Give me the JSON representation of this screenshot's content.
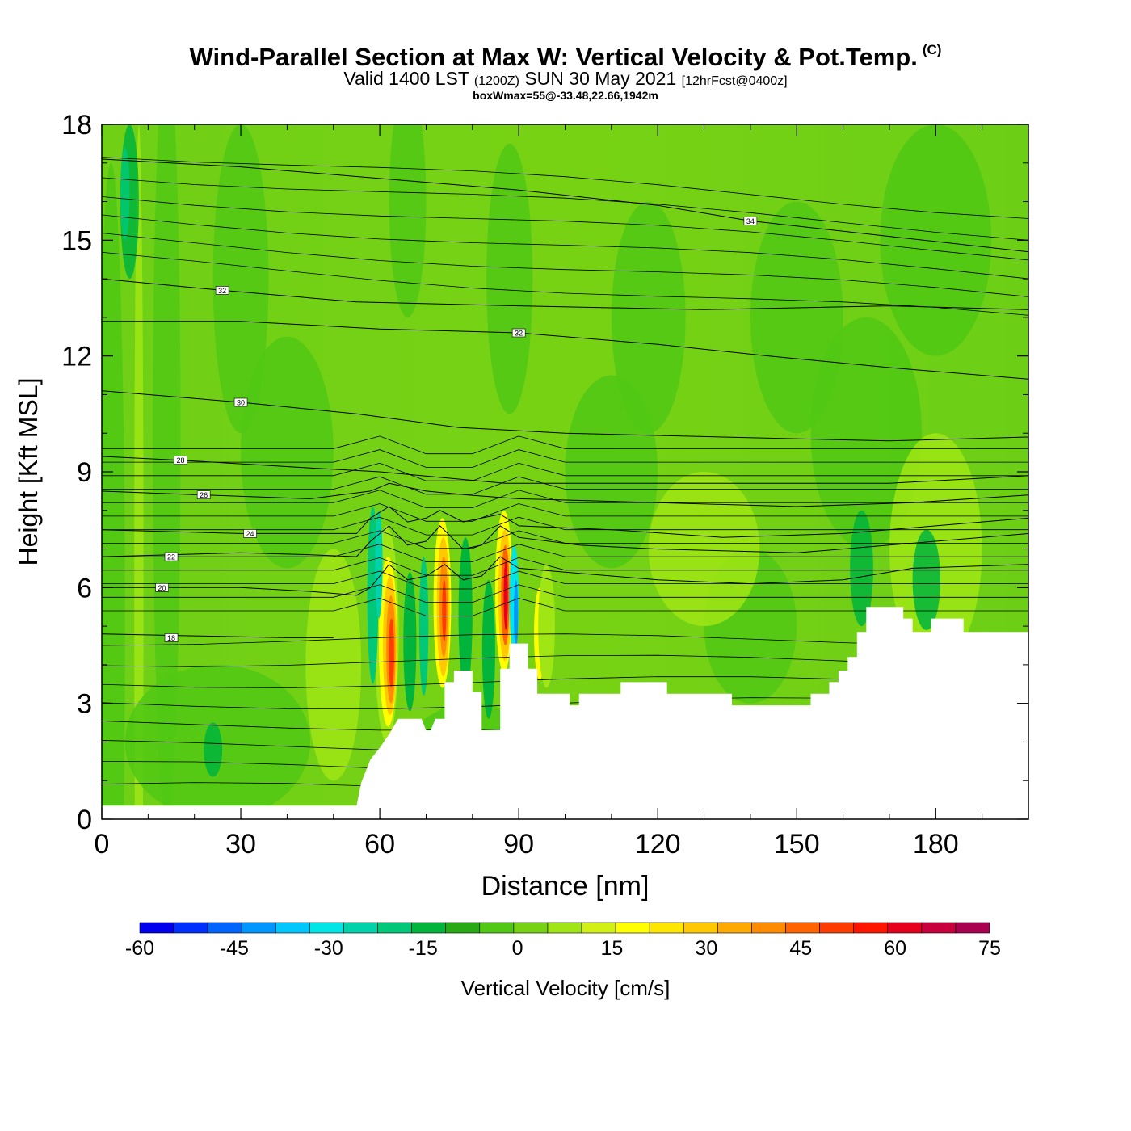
{
  "header": {
    "title": "Wind-Parallel Section at Max W: Vertical Velocity & Pot.Temp.",
    "copyright": "(C)",
    "valid_prefix": "Valid 1400 LST",
    "valid_utc": "(1200Z)",
    "valid_date": "SUN 30 May 2021",
    "forecast": "[12hrFcst@0400z]",
    "box_info": "boxWmax=55@-33.48,22.66,1942m"
  },
  "chart_data": {
    "type": "heatmap",
    "xlabel": "Distance [nm]",
    "ylabel": "Height [Kft MSL]",
    "xlim": [
      0,
      200
    ],
    "ylim": [
      0,
      18
    ],
    "x_ticks": [
      0,
      30,
      60,
      90,
      120,
      150,
      180
    ],
    "y_ticks": [
      0,
      3,
      6,
      9,
      12,
      15,
      18
    ],
    "colorbar": {
      "label": "Vertical Velocity [cm/s]",
      "min": -60,
      "max": 75,
      "step": 5,
      "tick_values": [
        -60,
        -45,
        -30,
        -15,
        0,
        15,
        30,
        45,
        60,
        75
      ],
      "colors": [
        "#0000ee",
        "#0030ff",
        "#0064ff",
        "#0096ff",
        "#00c8ff",
        "#00e6e6",
        "#00d2aa",
        "#00c878",
        "#00b43c",
        "#28aa14",
        "#50c814",
        "#78d214",
        "#a0e614",
        "#d2f014",
        "#ffff00",
        "#ffe600",
        "#ffc800",
        "#ffaa00",
        "#ff8c00",
        "#ff6400",
        "#ff3c00",
        "#ff1400",
        "#e6001e",
        "#c8003c",
        "#aa0050"
      ]
    },
    "terrain_profile": [
      [
        0,
        0.35
      ],
      [
        55,
        0.35
      ],
      [
        56,
        0.95
      ],
      [
        58,
        1.55
      ],
      [
        60,
        1.85
      ],
      [
        62,
        2.2
      ],
      [
        64,
        2.6
      ],
      [
        69,
        2.6
      ],
      [
        70,
        2.3
      ],
      [
        71,
        2.3
      ],
      [
        72,
        2.6
      ],
      [
        74,
        2.6
      ],
      [
        74,
        3.55
      ],
      [
        76,
        3.55
      ],
      [
        76,
        3.85
      ],
      [
        80,
        3.85
      ],
      [
        80,
        3.3
      ],
      [
        82,
        3.3
      ],
      [
        82,
        2.3
      ],
      [
        86,
        2.3
      ],
      [
        86,
        3.9
      ],
      [
        88,
        3.9
      ],
      [
        88,
        4.55
      ],
      [
        92,
        4.55
      ],
      [
        92,
        3.9
      ],
      [
        94,
        3.9
      ],
      [
        94,
        3.25
      ],
      [
        101,
        3.25
      ],
      [
        101,
        2.95
      ],
      [
        103,
        2.95
      ],
      [
        103,
        3.25
      ],
      [
        112,
        3.25
      ],
      [
        112,
        3.55
      ],
      [
        122,
        3.55
      ],
      [
        122,
        3.25
      ],
      [
        136,
        3.25
      ],
      [
        136,
        2.95
      ],
      [
        153,
        2.95
      ],
      [
        153,
        3.25
      ],
      [
        157,
        3.25
      ],
      [
        157,
        3.55
      ],
      [
        159,
        3.55
      ],
      [
        159,
        3.85
      ],
      [
        161,
        3.85
      ],
      [
        161,
        4.2
      ],
      [
        163,
        4.2
      ],
      [
        163,
        4.85
      ],
      [
        165,
        4.85
      ],
      [
        165,
        5.5
      ],
      [
        173,
        5.5
      ],
      [
        173,
        5.2
      ],
      [
        175,
        5.2
      ],
      [
        175,
        4.85
      ],
      [
        179,
        4.85
      ],
      [
        179,
        5.2
      ],
      [
        186,
        5.2
      ],
      [
        186,
        4.85
      ],
      [
        200,
        4.85
      ]
    ],
    "isentropes": [
      {
        "label": "18",
        "label_at": [
          15,
          4.7
        ],
        "points": [
          [
            0,
            4.8
          ],
          [
            20,
            4.75
          ],
          [
            40,
            4.7
          ],
          [
            50,
            4.7
          ]
        ]
      },
      {
        "label": "20",
        "label_at": [
          13,
          6.0
        ],
        "points": [
          [
            0,
            6.0
          ],
          [
            30,
            6.0
          ],
          [
            45,
            5.9
          ],
          [
            55,
            5.8
          ],
          [
            58,
            6.0
          ],
          [
            62,
            6.6
          ],
          [
            66,
            6.2
          ],
          [
            70,
            6.3
          ],
          [
            74,
            6.6
          ],
          [
            78,
            6.2
          ],
          [
            82,
            6.3
          ],
          [
            86,
            6.8
          ],
          [
            90,
            6.5
          ],
          [
            100,
            6.4
          ],
          [
            120,
            6.2
          ],
          [
            140,
            6.1
          ],
          [
            160,
            6.2
          ],
          [
            175,
            6.5
          ],
          [
            200,
            6.6
          ]
        ]
      },
      {
        "label": "22",
        "label_at": [
          15,
          6.8
        ],
        "points": [
          [
            0,
            6.8
          ],
          [
            30,
            6.9
          ],
          [
            45,
            6.85
          ],
          [
            55,
            6.8
          ],
          [
            58,
            7.2
          ],
          [
            62,
            7.6
          ],
          [
            66,
            7.1
          ],
          [
            70,
            7.2
          ],
          [
            73,
            7.6
          ],
          [
            78,
            7.0
          ],
          [
            82,
            7.1
          ],
          [
            86,
            7.6
          ],
          [
            90,
            7.3
          ],
          [
            103,
            7.1
          ],
          [
            120,
            7.0
          ],
          [
            150,
            6.9
          ],
          [
            170,
            7.1
          ],
          [
            200,
            7.4
          ]
        ]
      },
      {
        "label": "24",
        "label_at": [
          32,
          7.4
        ],
        "points": [
          [
            0,
            7.5
          ],
          [
            30,
            7.4
          ],
          [
            45,
            7.4
          ],
          [
            55,
            7.4
          ],
          [
            58,
            7.8
          ],
          [
            62,
            8.1
          ],
          [
            66,
            7.7
          ],
          [
            70,
            7.8
          ],
          [
            73,
            8.0
          ],
          [
            78,
            7.7
          ],
          [
            82,
            7.8
          ],
          [
            86,
            7.9
          ],
          [
            90,
            7.6
          ],
          [
            110,
            7.5
          ],
          [
            134,
            7.3
          ],
          [
            160,
            7.4
          ],
          [
            180,
            7.6
          ],
          [
            200,
            7.8
          ]
        ]
      },
      {
        "label": "26",
        "label_at": [
          22,
          8.4
        ],
        "points": [
          [
            0,
            8.5
          ],
          [
            22,
            8.4
          ],
          [
            45,
            8.3
          ],
          [
            58,
            8.5
          ],
          [
            62,
            8.7
          ],
          [
            70,
            8.5
          ],
          [
            79,
            8.4
          ],
          [
            90,
            8.3
          ],
          [
            120,
            8.2
          ],
          [
            150,
            8.1
          ],
          [
            175,
            8.2
          ],
          [
            200,
            8.4
          ]
        ]
      },
      {
        "label": "28",
        "label_at": [
          17,
          9.3
        ],
        "points": [
          [
            0,
            9.4
          ],
          [
            17,
            9.3
          ],
          [
            45,
            9.1
          ],
          [
            60,
            9.0
          ],
          [
            87,
            8.7
          ],
          [
            110,
            8.7
          ],
          [
            139,
            8.7
          ],
          [
            170,
            8.7
          ],
          [
            200,
            8.9
          ]
        ]
      },
      {
        "label": "30",
        "label_at": [
          30,
          10.8
        ],
        "points": [
          [
            0,
            11.1
          ],
          [
            30,
            10.8
          ],
          [
            55,
            10.5
          ],
          [
            77,
            10.15
          ],
          [
            100,
            10.0
          ],
          [
            134,
            9.9
          ],
          [
            170,
            9.8
          ],
          [
            200,
            9.9
          ]
        ]
      },
      {
        "label": "32",
        "label_at": [
          90,
          12.6
        ],
        "points": [
          [
            0,
            12.9
          ],
          [
            30,
            12.9
          ],
          [
            60,
            12.7
          ],
          [
            90,
            12.6
          ],
          [
            120,
            12.3
          ],
          [
            144,
            12.0
          ],
          [
            170,
            11.7
          ],
          [
            200,
            11.4
          ]
        ]
      },
      {
        "label": "32",
        "label_at": [
          26,
          13.7
        ],
        "points": [
          [
            0,
            14.0
          ],
          [
            26,
            13.7
          ],
          [
            55,
            13.4
          ],
          [
            90,
            13.3
          ],
          [
            130,
            13.2
          ],
          [
            170,
            13.3
          ],
          [
            200,
            13.2
          ]
        ]
      },
      {
        "label": "34",
        "label_at": [
          140,
          15.5
        ],
        "points": [
          [
            0,
            17.1
          ],
          [
            30,
            16.9
          ],
          [
            60,
            16.6
          ],
          [
            90,
            16.3
          ],
          [
            120,
            15.9
          ],
          [
            140,
            15.5
          ],
          [
            170,
            15.1
          ],
          [
            200,
            14.7
          ]
        ]
      }
    ]
  }
}
